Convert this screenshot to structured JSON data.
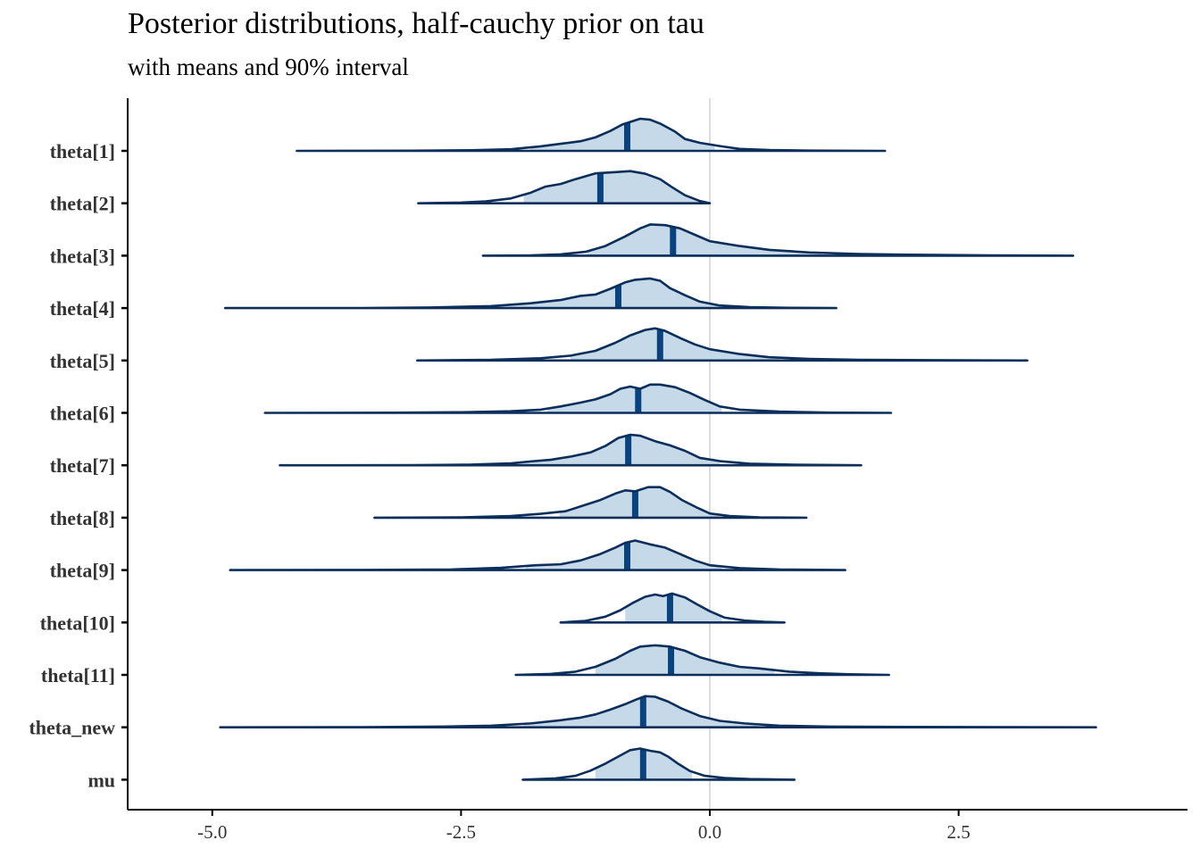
{
  "chart_data": {
    "type": "area",
    "title": "Posterior distributions, half-cauchy prior on tau",
    "subtitle": "with means and 90% interval",
    "xlim": [
      -5.85,
      4.8
    ],
    "x_ticks": [
      -5.0,
      -2.5,
      0.0,
      2.5
    ],
    "x_tick_labels": [
      "-5.0",
      "-2.5",
      "0.0",
      "2.5"
    ],
    "reference_line_x": 0.0,
    "grid": false,
    "colors": {
      "fill": "#c6d9e8",
      "outline": "#0b2e5a",
      "mean_line": "#08437f",
      "reference_line": "#dddddd",
      "axis": "#000000"
    },
    "series": [
      {
        "name": "theta[1]",
        "mean": -0.83,
        "interval_90": [
          -1.8,
          0.05
        ],
        "range": [
          -4.15,
          1.76
        ],
        "density": [
          [
            -4.15,
            0
          ],
          [
            -3.0,
            0.005
          ],
          [
            -2.4,
            0.02
          ],
          [
            -2.0,
            0.05
          ],
          [
            -1.7,
            0.14
          ],
          [
            -1.5,
            0.22
          ],
          [
            -1.3,
            0.3
          ],
          [
            -1.15,
            0.42
          ],
          [
            -1.0,
            0.62
          ],
          [
            -0.88,
            0.82
          ],
          [
            -0.7,
            1.0
          ],
          [
            -0.6,
            0.97
          ],
          [
            -0.5,
            0.85
          ],
          [
            -0.35,
            0.6
          ],
          [
            -0.25,
            0.37
          ],
          [
            -0.1,
            0.25
          ],
          [
            0.1,
            0.15
          ],
          [
            0.3,
            0.06
          ],
          [
            0.6,
            0.025
          ],
          [
            1.0,
            0.01
          ],
          [
            1.76,
            0
          ]
        ]
      },
      {
        "name": "theta[2]",
        "mean": -1.1,
        "interval_90": [
          -1.87,
          -0.1
        ],
        "range": [
          -2.93,
          0.0
        ],
        "density": [
          [
            -2.93,
            0
          ],
          [
            -2.5,
            0.02
          ],
          [
            -2.25,
            0.06
          ],
          [
            -2.0,
            0.15
          ],
          [
            -1.8,
            0.33
          ],
          [
            -1.65,
            0.52
          ],
          [
            -1.5,
            0.6
          ],
          [
            -1.35,
            0.75
          ],
          [
            -1.15,
            0.93
          ],
          [
            -0.95,
            0.97
          ],
          [
            -0.8,
            1.0
          ],
          [
            -0.65,
            0.92
          ],
          [
            -0.5,
            0.75
          ],
          [
            -0.38,
            0.5
          ],
          [
            -0.25,
            0.25
          ],
          [
            -0.1,
            0.07
          ],
          [
            0.0,
            0
          ]
        ]
      },
      {
        "name": "theta[3]",
        "mean": -0.37,
        "interval_90": [
          -1.23,
          1.12
        ],
        "range": [
          -2.28,
          3.65
        ],
        "density": [
          [
            -2.28,
            0
          ],
          [
            -1.8,
            0.01
          ],
          [
            -1.5,
            0.04
          ],
          [
            -1.25,
            0.12
          ],
          [
            -1.05,
            0.3
          ],
          [
            -0.85,
            0.6
          ],
          [
            -0.7,
            0.85
          ],
          [
            -0.6,
            0.97
          ],
          [
            -0.45,
            0.95
          ],
          [
            -0.3,
            0.85
          ],
          [
            -0.15,
            0.65
          ],
          [
            0.0,
            0.45
          ],
          [
            0.3,
            0.3
          ],
          [
            0.6,
            0.18
          ],
          [
            1.0,
            0.1
          ],
          [
            1.5,
            0.05
          ],
          [
            2.0,
            0.03
          ],
          [
            2.8,
            0.01
          ],
          [
            3.65,
            0
          ]
        ]
      },
      {
        "name": "theta[4]",
        "mean": -0.92,
        "interval_90": [
          -2.14,
          0.1
        ],
        "range": [
          -4.87,
          1.27
        ],
        "density": [
          [
            -4.87,
            0
          ],
          [
            -3.5,
            0.003
          ],
          [
            -2.8,
            0.02
          ],
          [
            -2.2,
            0.06
          ],
          [
            -1.8,
            0.15
          ],
          [
            -1.5,
            0.25
          ],
          [
            -1.3,
            0.38
          ],
          [
            -1.15,
            0.42
          ],
          [
            -1.0,
            0.6
          ],
          [
            -0.85,
            0.8
          ],
          [
            -0.75,
            0.88
          ],
          [
            -0.6,
            0.92
          ],
          [
            -0.5,
            0.85
          ],
          [
            -0.4,
            0.62
          ],
          [
            -0.25,
            0.4
          ],
          [
            -0.1,
            0.2
          ],
          [
            0.1,
            0.08
          ],
          [
            0.4,
            0.03
          ],
          [
            0.8,
            0.01
          ],
          [
            1.27,
            0
          ]
        ]
      },
      {
        "name": "theta[5]",
        "mean": -0.5,
        "interval_90": [
          -1.4,
          0.7
        ],
        "range": [
          -2.94,
          3.19
        ],
        "density": [
          [
            -2.94,
            0
          ],
          [
            -2.2,
            0.02
          ],
          [
            -1.7,
            0.07
          ],
          [
            -1.4,
            0.15
          ],
          [
            -1.15,
            0.3
          ],
          [
            -0.95,
            0.55
          ],
          [
            -0.8,
            0.78
          ],
          [
            -0.65,
            0.95
          ],
          [
            -0.55,
            1.0
          ],
          [
            -0.45,
            0.92
          ],
          [
            -0.3,
            0.7
          ],
          [
            -0.15,
            0.5
          ],
          [
            0.0,
            0.35
          ],
          [
            0.3,
            0.2
          ],
          [
            0.6,
            0.1
          ],
          [
            1.0,
            0.05
          ],
          [
            1.5,
            0.02
          ],
          [
            2.2,
            0.01
          ],
          [
            3.19,
            0
          ]
        ]
      },
      {
        "name": "theta[6]",
        "mean": -0.72,
        "interval_90": [
          -1.63,
          0.12
        ],
        "range": [
          -4.47,
          1.82
        ],
        "density": [
          [
            -4.47,
            0
          ],
          [
            -3.2,
            0.005
          ],
          [
            -2.5,
            0.02
          ],
          [
            -2.0,
            0.05
          ],
          [
            -1.7,
            0.1
          ],
          [
            -1.5,
            0.2
          ],
          [
            -1.3,
            0.32
          ],
          [
            -1.15,
            0.42
          ],
          [
            -1.0,
            0.58
          ],
          [
            -0.9,
            0.75
          ],
          [
            -0.8,
            0.82
          ],
          [
            -0.7,
            0.75
          ],
          [
            -0.6,
            0.88
          ],
          [
            -0.5,
            0.88
          ],
          [
            -0.35,
            0.8
          ],
          [
            -0.2,
            0.62
          ],
          [
            -0.05,
            0.4
          ],
          [
            0.1,
            0.2
          ],
          [
            0.3,
            0.1
          ],
          [
            0.7,
            0.04
          ],
          [
            1.2,
            0.01
          ],
          [
            1.82,
            0
          ]
        ]
      },
      {
        "name": "theta[7]",
        "mean": -0.82,
        "interval_90": [
          -1.95,
          0.1
        ],
        "range": [
          -4.32,
          1.52
        ],
        "density": [
          [
            -4.32,
            0
          ],
          [
            -3.0,
            0.005
          ],
          [
            -2.4,
            0.02
          ],
          [
            -2.0,
            0.06
          ],
          [
            -1.8,
            0.12
          ],
          [
            -1.6,
            0.17
          ],
          [
            -1.4,
            0.27
          ],
          [
            -1.2,
            0.4
          ],
          [
            -1.05,
            0.6
          ],
          [
            -0.92,
            0.85
          ],
          [
            -0.8,
            0.95
          ],
          [
            -0.7,
            0.92
          ],
          [
            -0.55,
            0.75
          ],
          [
            -0.4,
            0.62
          ],
          [
            -0.25,
            0.45
          ],
          [
            -0.1,
            0.23
          ],
          [
            0.1,
            0.13
          ],
          [
            0.4,
            0.05
          ],
          [
            0.8,
            0.02
          ],
          [
            1.52,
            0
          ]
        ]
      },
      {
        "name": "theta[8]",
        "mean": -0.75,
        "interval_90": [
          -1.51,
          0.1
        ],
        "range": [
          -3.37,
          0.97
        ],
        "density": [
          [
            -3.37,
            0
          ],
          [
            -2.5,
            0.01
          ],
          [
            -2.0,
            0.05
          ],
          [
            -1.7,
            0.12
          ],
          [
            -1.45,
            0.2
          ],
          [
            -1.25,
            0.4
          ],
          [
            -1.1,
            0.55
          ],
          [
            -0.95,
            0.75
          ],
          [
            -0.85,
            0.85
          ],
          [
            -0.75,
            0.82
          ],
          [
            -0.62,
            0.95
          ],
          [
            -0.5,
            0.95
          ],
          [
            -0.4,
            0.8
          ],
          [
            -0.28,
            0.55
          ],
          [
            -0.12,
            0.3
          ],
          [
            0.0,
            0.13
          ],
          [
            0.2,
            0.05
          ],
          [
            0.5,
            0.01
          ],
          [
            0.97,
            0
          ]
        ]
      },
      {
        "name": "theta[9]",
        "mean": -0.83,
        "interval_90": [
          -1.85,
          0.12
        ],
        "range": [
          -4.82,
          1.36
        ],
        "density": [
          [
            -4.82,
            0
          ],
          [
            -3.5,
            0.005
          ],
          [
            -2.6,
            0.02
          ],
          [
            -2.1,
            0.07
          ],
          [
            -1.75,
            0.15
          ],
          [
            -1.5,
            0.18
          ],
          [
            -1.3,
            0.3
          ],
          [
            -1.1,
            0.5
          ],
          [
            -0.95,
            0.7
          ],
          [
            -0.85,
            0.85
          ],
          [
            -0.75,
            0.92
          ],
          [
            -0.6,
            0.8
          ],
          [
            -0.45,
            0.7
          ],
          [
            -0.3,
            0.5
          ],
          [
            -0.15,
            0.3
          ],
          [
            0.0,
            0.15
          ],
          [
            0.3,
            0.06
          ],
          [
            0.7,
            0.02
          ],
          [
            1.36,
            0
          ]
        ]
      },
      {
        "name": "theta[10]",
        "mean": -0.4,
        "interval_90": [
          -0.85,
          0.12
        ],
        "range": [
          -1.5,
          0.75
        ],
        "density": [
          [
            -1.5,
            0
          ],
          [
            -1.25,
            0.05
          ],
          [
            -1.05,
            0.18
          ],
          [
            -0.9,
            0.38
          ],
          [
            -0.78,
            0.6
          ],
          [
            -0.65,
            0.8
          ],
          [
            -0.55,
            0.87
          ],
          [
            -0.47,
            0.82
          ],
          [
            -0.38,
            0.9
          ],
          [
            -0.25,
            0.78
          ],
          [
            -0.12,
            0.55
          ],
          [
            0.0,
            0.35
          ],
          [
            0.15,
            0.15
          ],
          [
            0.35,
            0.06
          ],
          [
            0.55,
            0.02
          ],
          [
            0.75,
            0
          ]
        ]
      },
      {
        "name": "theta[11]",
        "mean": -0.39,
        "interval_90": [
          -1.15,
          0.65
        ],
        "range": [
          -1.95,
          1.8
        ],
        "density": [
          [
            -1.95,
            0
          ],
          [
            -1.6,
            0.03
          ],
          [
            -1.35,
            0.1
          ],
          [
            -1.15,
            0.25
          ],
          [
            -0.95,
            0.5
          ],
          [
            -0.8,
            0.75
          ],
          [
            -0.7,
            0.88
          ],
          [
            -0.55,
            0.92
          ],
          [
            -0.4,
            0.88
          ],
          [
            -0.25,
            0.75
          ],
          [
            -0.1,
            0.55
          ],
          [
            0.1,
            0.38
          ],
          [
            0.3,
            0.25
          ],
          [
            0.5,
            0.2
          ],
          [
            0.8,
            0.1
          ],
          [
            1.1,
            0.05
          ],
          [
            1.4,
            0.02
          ],
          [
            1.8,
            0
          ]
        ]
      },
      {
        "name": "theta_new",
        "mean": -0.67,
        "interval_90": [
          -1.87,
          0.48
        ],
        "range": [
          -4.92,
          3.88
        ],
        "density": [
          [
            -4.92,
            0
          ],
          [
            -3.5,
            0.005
          ],
          [
            -2.7,
            0.02
          ],
          [
            -2.2,
            0.05
          ],
          [
            -1.8,
            0.12
          ],
          [
            -1.5,
            0.22
          ],
          [
            -1.3,
            0.3
          ],
          [
            -1.15,
            0.4
          ],
          [
            -1.0,
            0.55
          ],
          [
            -0.85,
            0.72
          ],
          [
            -0.75,
            0.85
          ],
          [
            -0.65,
            0.97
          ],
          [
            -0.55,
            0.95
          ],
          [
            -0.42,
            0.8
          ],
          [
            -0.28,
            0.58
          ],
          [
            -0.1,
            0.35
          ],
          [
            0.1,
            0.2
          ],
          [
            0.35,
            0.12
          ],
          [
            0.7,
            0.05
          ],
          [
            1.2,
            0.02
          ],
          [
            2.0,
            0.01
          ],
          [
            3.88,
            0
          ]
        ]
      },
      {
        "name": "mu",
        "mean": -0.67,
        "interval_90": [
          -1.15,
          -0.18
        ],
        "range": [
          -1.88,
          0.85
        ],
        "density": [
          [
            -1.88,
            0
          ],
          [
            -1.55,
            0.04
          ],
          [
            -1.35,
            0.12
          ],
          [
            -1.2,
            0.28
          ],
          [
            -1.05,
            0.5
          ],
          [
            -0.92,
            0.72
          ],
          [
            -0.8,
            0.92
          ],
          [
            -0.7,
            0.97
          ],
          [
            -0.6,
            0.9
          ],
          [
            -0.5,
            0.85
          ],
          [
            -0.42,
            0.72
          ],
          [
            -0.32,
            0.5
          ],
          [
            -0.2,
            0.27
          ],
          [
            -0.05,
            0.12
          ],
          [
            0.15,
            0.05
          ],
          [
            0.4,
            0.02
          ],
          [
            0.85,
            0
          ]
        ]
      }
    ]
  }
}
